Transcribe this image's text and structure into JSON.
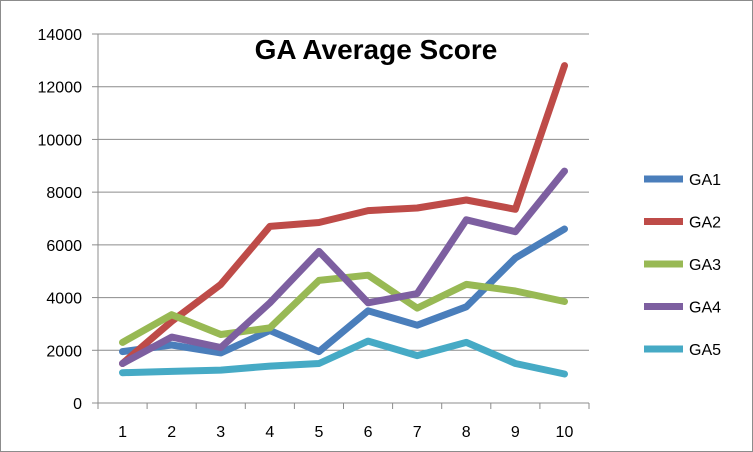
{
  "chart_data": {
    "type": "line",
    "title": "GA Average Score",
    "xlabel": "",
    "ylabel": "",
    "x": [
      1,
      2,
      3,
      4,
      5,
      6,
      7,
      8,
      9,
      10
    ],
    "ylim": [
      0,
      14000
    ],
    "yticks": [
      0,
      2000,
      4000,
      6000,
      8000,
      10000,
      12000,
      14000
    ],
    "grid": true,
    "legend_position": "right",
    "series": [
      {
        "name": "GA1",
        "color": "#4a7ebb",
        "values": [
          1950,
          2200,
          1900,
          2750,
          1950,
          3500,
          2950,
          3650,
          5500,
          6600
        ]
      },
      {
        "name": "GA2",
        "color": "#be4b48",
        "values": [
          1500,
          3100,
          4500,
          6700,
          6850,
          7300,
          7400,
          7700,
          7350,
          12800
        ]
      },
      {
        "name": "GA3",
        "color": "#98b954",
        "values": [
          2300,
          3350,
          2600,
          2850,
          4650,
          4850,
          3600,
          4500,
          4250,
          3850
        ]
      },
      {
        "name": "GA4",
        "color": "#7d5fa0",
        "values": [
          1500,
          2500,
          2100,
          3800,
          5750,
          3800,
          4150,
          6950,
          6500,
          8800
        ]
      },
      {
        "name": "GA5",
        "color": "#46aac5",
        "values": [
          1150,
          1200,
          1250,
          1400,
          1500,
          2350,
          1800,
          2300,
          1500,
          1100
        ]
      }
    ]
  }
}
